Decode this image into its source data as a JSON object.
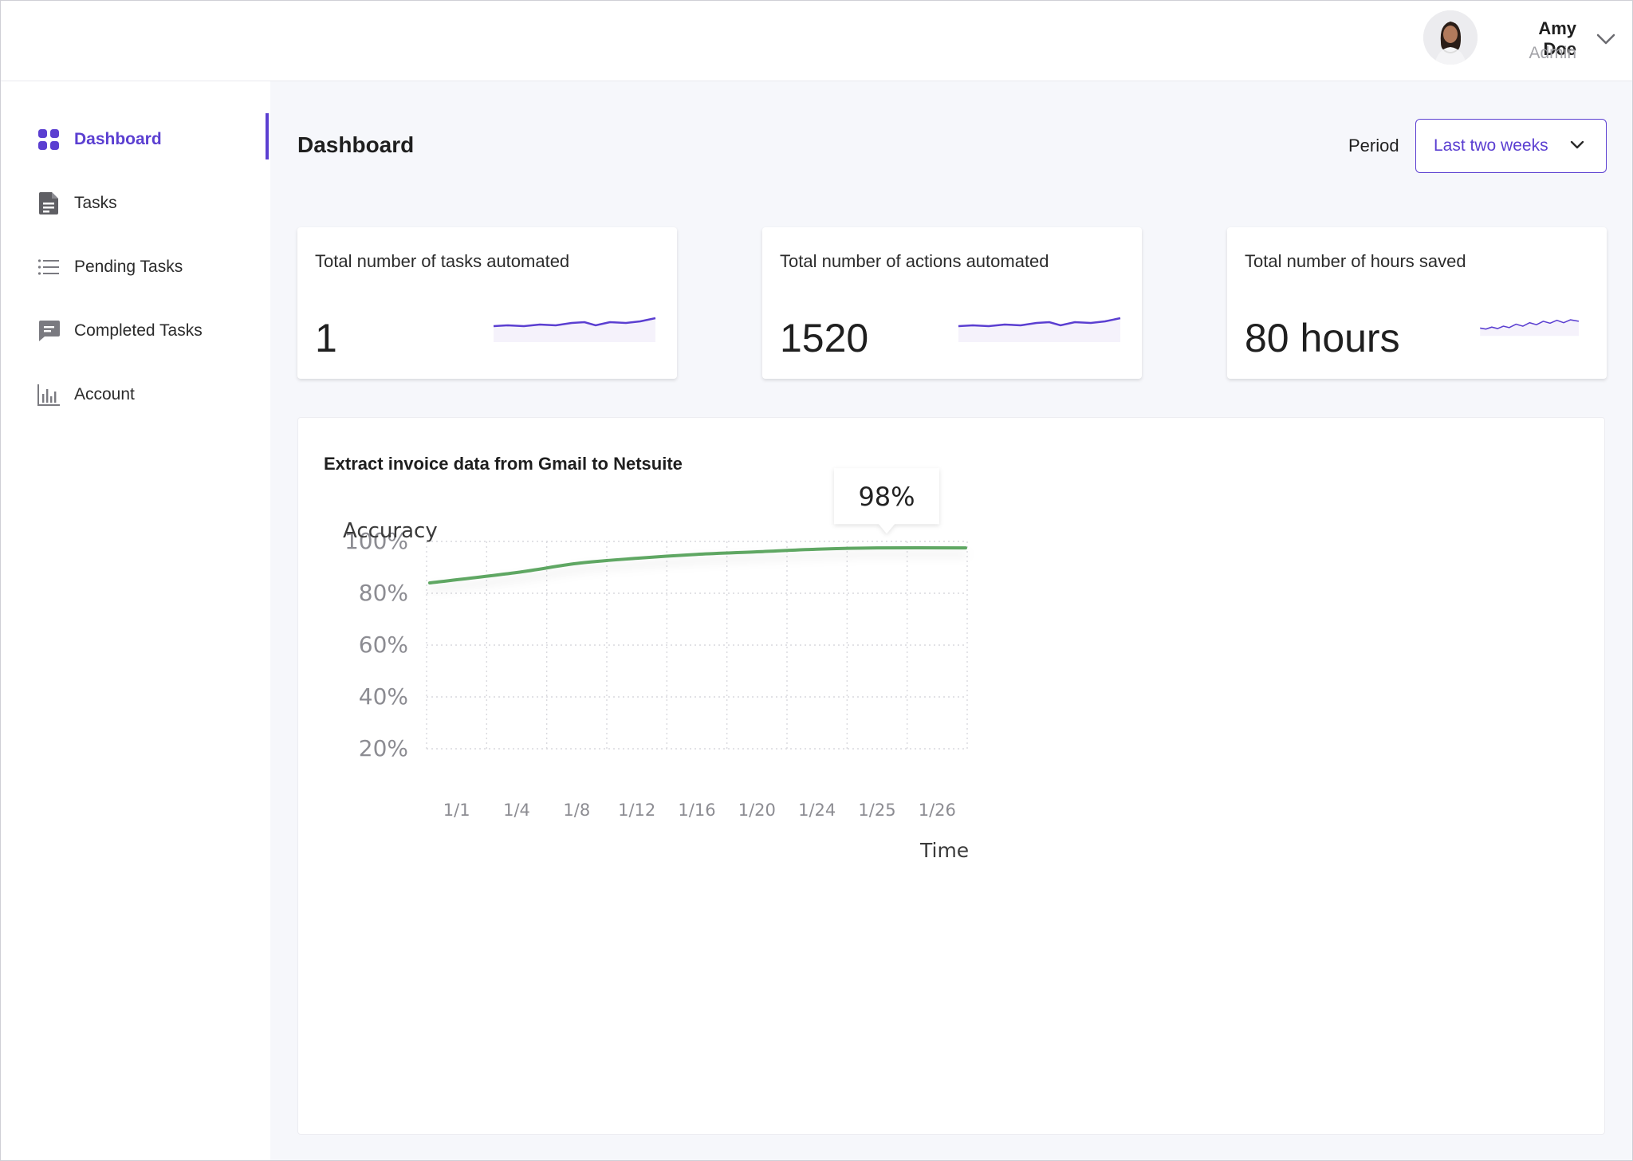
{
  "user": {
    "name": "Amy Doe",
    "role": "Admin",
    "avatar_icon": "user-avatar-photo"
  },
  "sidebar": {
    "items": [
      {
        "label": "Dashboard",
        "icon": "grid-icon",
        "active": true
      },
      {
        "label": "Tasks",
        "icon": "document-icon",
        "active": false
      },
      {
        "label": "Pending Tasks",
        "icon": "list-icon",
        "active": false
      },
      {
        "label": "Completed Tasks",
        "icon": "message-icon",
        "active": false
      },
      {
        "label": "Account",
        "icon": "bar-chart-icon",
        "active": false
      }
    ]
  },
  "header": {
    "title": "Dashboard",
    "period_label": "Period",
    "period_value": "Last two weeks"
  },
  "stats": [
    {
      "title": "Total number of tasks automated",
      "value": "1"
    },
    {
      "title": "Total number of actions automated",
      "value": "1520"
    },
    {
      "title": "Total number of hours saved",
      "value": "80 hours"
    }
  ],
  "colors": {
    "accent": "#5b3fd1",
    "line": "#5fa763",
    "sparkline": "#5b3fd1"
  },
  "panel": {
    "title": "Extract invoice data from Gmail to Netsuite"
  },
  "chart_data": {
    "type": "line",
    "ylabel": "Accuracy",
    "xlabel": "Time",
    "categories": [
      "1/1",
      "1/4",
      "1/8",
      "1/12",
      "1/16",
      "1/20",
      "1/24",
      "1/25",
      "1/26"
    ],
    "y_ticks": [
      "100%",
      "80%",
      "60%",
      "40%",
      "20%"
    ],
    "ylim": [
      20,
      100
    ],
    "grid": true,
    "series": [
      {
        "values": [
          84,
          88,
          91.5,
          93.5,
          95,
          96,
          97,
          97.5,
          97.5
        ]
      }
    ],
    "tooltip": {
      "label": "98%",
      "category": "1/25"
    }
  }
}
